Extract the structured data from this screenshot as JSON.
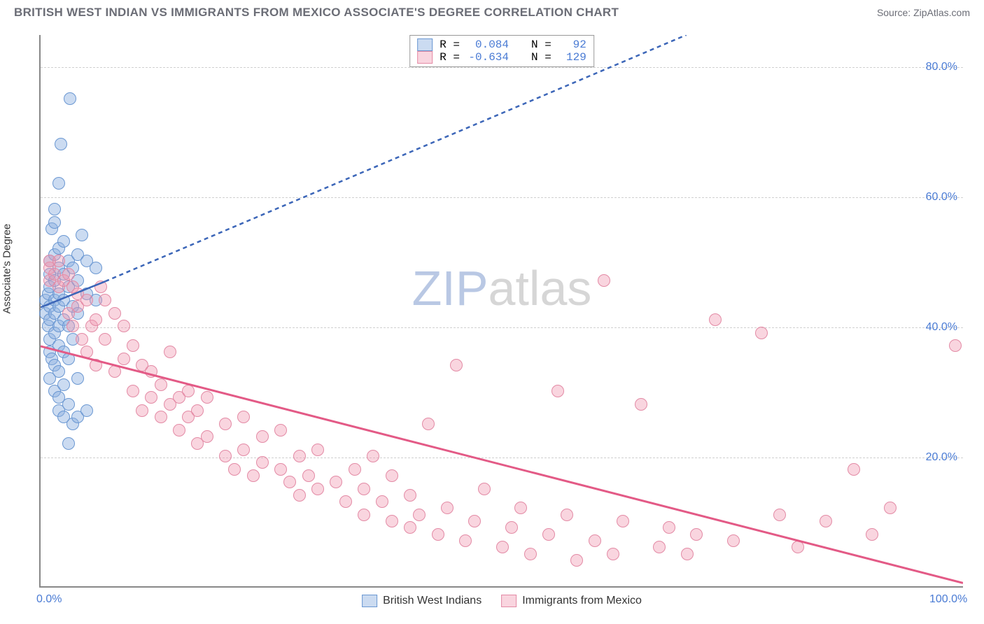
{
  "header": {
    "title": "BRITISH WEST INDIAN VS IMMIGRANTS FROM MEXICO ASSOCIATE'S DEGREE CORRELATION CHART",
    "source_label": "Source: ",
    "source_value": "ZipAtlas.com"
  },
  "chart": {
    "type": "scatter",
    "ylabel": "Associate's Degree",
    "background_color": "#ffffff",
    "grid_color": "#d0d0d0",
    "axis_color": "#888888",
    "tick_color": "#4a7bd4",
    "tick_fontsize": 16,
    "xlim": [
      0,
      100
    ],
    "ylim": [
      0,
      85
    ],
    "yticks": [
      20,
      40,
      60,
      80
    ],
    "ytick_labels": [
      "20.0%",
      "40.0%",
      "60.0%",
      "80.0%"
    ],
    "xticks": [
      0,
      100
    ],
    "xtick_labels": [
      "0.0%",
      "100.0%"
    ],
    "point_radius": 9,
    "series": [
      {
        "id": "bwi",
        "label": "British West Indians",
        "fill": "rgba(140,175,225,0.45)",
        "stroke": "#6a97d2",
        "stroke_width": 1.5,
        "R": "0.084",
        "N": "92",
        "regression": {
          "start": [
            0,
            43
          ],
          "solid_end": [
            7,
            47
          ],
          "dashed_end": [
            70,
            85
          ],
          "color": "#3c66b8",
          "width": 2.5,
          "dash": "6,5"
        },
        "points": [
          [
            0.5,
            42
          ],
          [
            0.5,
            44
          ],
          [
            0.8,
            40
          ],
          [
            0.8,
            45
          ],
          [
            1,
            32
          ],
          [
            1,
            36
          ],
          [
            1,
            38
          ],
          [
            1,
            41
          ],
          [
            1,
            43
          ],
          [
            1,
            46
          ],
          [
            1,
            48
          ],
          [
            1,
            50
          ],
          [
            1.2,
            55
          ],
          [
            1.2,
            35
          ],
          [
            1.5,
            30
          ],
          [
            1.5,
            34
          ],
          [
            1.5,
            39
          ],
          [
            1.5,
            42
          ],
          [
            1.5,
            44
          ],
          [
            1.5,
            47
          ],
          [
            1.5,
            51
          ],
          [
            1.5,
            56
          ],
          [
            1.5,
            58
          ],
          [
            2,
            27
          ],
          [
            2,
            29
          ],
          [
            2,
            33
          ],
          [
            2,
            37
          ],
          [
            2,
            40
          ],
          [
            2,
            43
          ],
          [
            2,
            45
          ],
          [
            2,
            49
          ],
          [
            2,
            52
          ],
          [
            2,
            62
          ],
          [
            2.2,
            68
          ],
          [
            2.5,
            26
          ],
          [
            2.5,
            31
          ],
          [
            2.5,
            36
          ],
          [
            2.5,
            41
          ],
          [
            2.5,
            44
          ],
          [
            2.5,
            48
          ],
          [
            2.5,
            53
          ],
          [
            3,
            22
          ],
          [
            3,
            28
          ],
          [
            3,
            35
          ],
          [
            3,
            40
          ],
          [
            3,
            46
          ],
          [
            3,
            50
          ],
          [
            3.2,
            75
          ],
          [
            3.5,
            25
          ],
          [
            3.5,
            38
          ],
          [
            3.5,
            43
          ],
          [
            3.5,
            49
          ],
          [
            4,
            26
          ],
          [
            4,
            32
          ],
          [
            4,
            42
          ],
          [
            4,
            47
          ],
          [
            4,
            51
          ],
          [
            4.5,
            54
          ],
          [
            5,
            27
          ],
          [
            5,
            45
          ],
          [
            5,
            50
          ],
          [
            6,
            44
          ],
          [
            6,
            49
          ]
        ]
      },
      {
        "id": "mex",
        "label": "Immigrants from Mexico",
        "fill": "rgba(240,150,175,0.40)",
        "stroke": "#e38aa5",
        "stroke_width": 1.5,
        "R": "-0.634",
        "N": "129",
        "regression": {
          "start": [
            0,
            37
          ],
          "end": [
            100,
            0.5
          ],
          "color": "#e35a86",
          "width": 3,
          "dash": "none"
        },
        "points": [
          [
            1,
            49
          ],
          [
            1,
            47
          ],
          [
            1,
            50
          ],
          [
            1.5,
            48
          ],
          [
            2,
            46
          ],
          [
            2,
            50
          ],
          [
            2.5,
            47
          ],
          [
            3,
            42
          ],
          [
            3,
            48
          ],
          [
            3.5,
            40
          ],
          [
            3.5,
            46
          ],
          [
            4,
            43
          ],
          [
            4,
            45
          ],
          [
            4.5,
            38
          ],
          [
            5,
            36
          ],
          [
            5,
            44
          ],
          [
            5.5,
            40
          ],
          [
            6,
            34
          ],
          [
            6,
            41
          ],
          [
            6.5,
            46
          ],
          [
            7,
            38
          ],
          [
            7,
            44
          ],
          [
            8,
            33
          ],
          [
            8,
            42
          ],
          [
            9,
            35
          ],
          [
            9,
            40
          ],
          [
            10,
            30
          ],
          [
            10,
            37
          ],
          [
            11,
            27
          ],
          [
            11,
            34
          ],
          [
            12,
            29
          ],
          [
            12,
            33
          ],
          [
            13,
            26
          ],
          [
            13,
            31
          ],
          [
            14,
            28
          ],
          [
            14,
            36
          ],
          [
            15,
            24
          ],
          [
            15,
            29
          ],
          [
            16,
            26
          ],
          [
            16,
            30
          ],
          [
            17,
            22
          ],
          [
            17,
            27
          ],
          [
            18,
            23
          ],
          [
            18,
            29
          ],
          [
            20,
            20
          ],
          [
            20,
            25
          ],
          [
            21,
            18
          ],
          [
            22,
            21
          ],
          [
            22,
            26
          ],
          [
            23,
            17
          ],
          [
            24,
            19
          ],
          [
            24,
            23
          ],
          [
            26,
            18
          ],
          [
            26,
            24
          ],
          [
            27,
            16
          ],
          [
            28,
            14
          ],
          [
            28,
            20
          ],
          [
            29,
            17
          ],
          [
            30,
            15
          ],
          [
            30,
            21
          ],
          [
            32,
            16
          ],
          [
            33,
            13
          ],
          [
            34,
            18
          ],
          [
            35,
            11
          ],
          [
            35,
            15
          ],
          [
            36,
            20
          ],
          [
            37,
            13
          ],
          [
            38,
            10
          ],
          [
            38,
            17
          ],
          [
            40,
            9
          ],
          [
            40,
            14
          ],
          [
            41,
            11
          ],
          [
            42,
            25
          ],
          [
            43,
            8
          ],
          [
            44,
            12
          ],
          [
            45,
            34
          ],
          [
            46,
            7
          ],
          [
            47,
            10
          ],
          [
            48,
            15
          ],
          [
            50,
            6
          ],
          [
            51,
            9
          ],
          [
            52,
            12
          ],
          [
            53,
            5
          ],
          [
            55,
            8
          ],
          [
            56,
            30
          ],
          [
            57,
            11
          ],
          [
            58,
            4
          ],
          [
            60,
            7
          ],
          [
            61,
            47
          ],
          [
            62,
            5
          ],
          [
            63,
            10
          ],
          [
            65,
            28
          ],
          [
            67,
            6
          ],
          [
            68,
            9
          ],
          [
            70,
            5
          ],
          [
            71,
            8
          ],
          [
            73,
            41
          ],
          [
            75,
            7
          ],
          [
            78,
            39
          ],
          [
            80,
            11
          ],
          [
            82,
            6
          ],
          [
            85,
            10
          ],
          [
            88,
            18
          ],
          [
            90,
            8
          ],
          [
            92,
            12
          ],
          [
            99,
            37
          ]
        ]
      }
    ]
  },
  "legend_top": {
    "R_label": "R = ",
    "N_label": "N = ",
    "value_color": "#4a7bd4"
  },
  "legend_bottom": {
    "series1_label": "British West Indians",
    "series2_label": "Immigrants from Mexico"
  },
  "watermark": {
    "part1": "ZIP",
    "part2": "atlas",
    "color1": "#b9c8e4",
    "color2": "#d6d6d6"
  }
}
